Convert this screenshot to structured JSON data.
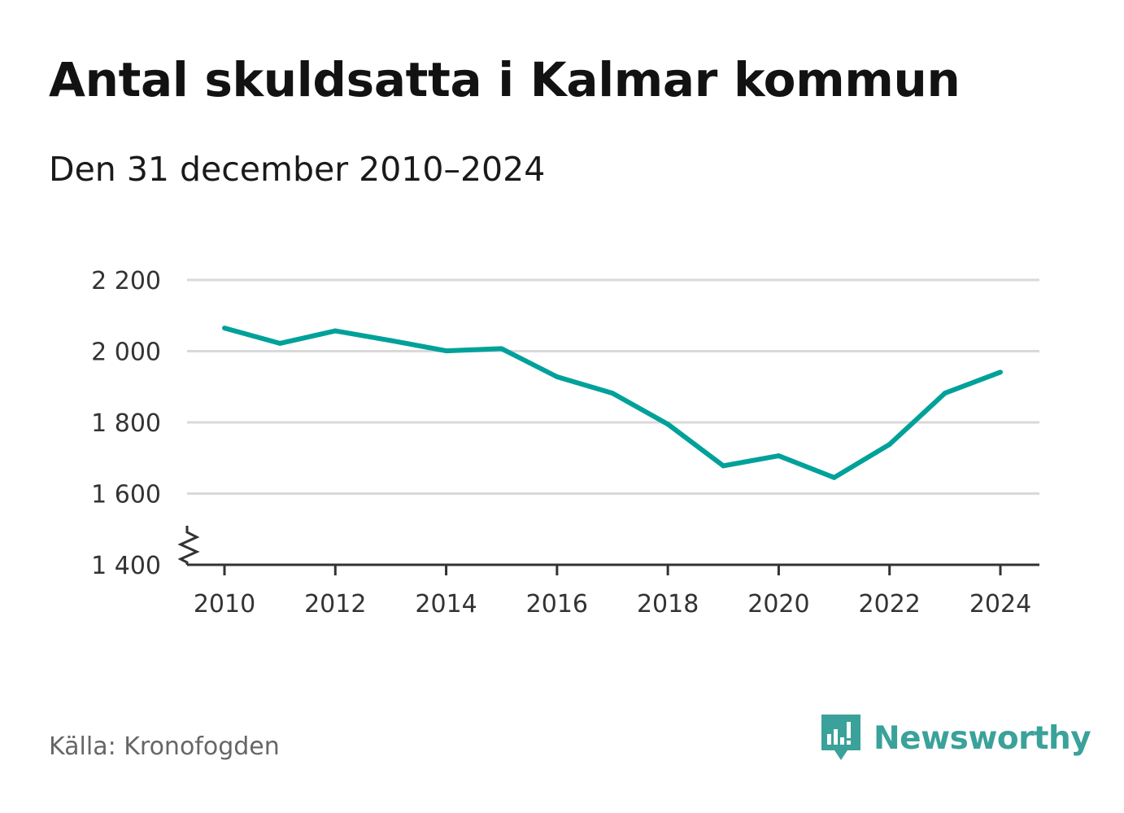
{
  "title": "Antal skuldsatta i Kalmar kommun",
  "subtitle": "Den 31 december 2010–2024",
  "source": "Källa: Kronofogden",
  "brand": "Newsworthy",
  "colors": {
    "line": "#00a19a",
    "grid": "#d9d9d9",
    "axis": "#333333",
    "brand": "#3aa29a"
  },
  "chart_data": {
    "type": "line",
    "title": "Antal skuldsatta i Kalmar kommun",
    "subtitle": "Den 31 december 2010–2024",
    "xlabel": "",
    "ylabel": "",
    "x": [
      2010,
      2011,
      2012,
      2013,
      2014,
      2015,
      2016,
      2017,
      2018,
      2019,
      2020,
      2021,
      2022,
      2023,
      2024
    ],
    "series": [
      {
        "values": [
          2065,
          2022,
          2057,
          2030,
          2001,
          2007,
          1928,
          1882,
          1795,
          1678,
          1706,
          1645,
          1738,
          1882,
          1941
        ]
      }
    ],
    "xlim": [
      2010,
      2024
    ],
    "ylim": [
      1400,
      2200
    ],
    "yticks": [
      1400,
      1600,
      1800,
      2000,
      2200
    ],
    "ytick_labels": [
      "1 400",
      "1 600",
      "1 800",
      "2 000",
      "2 200"
    ],
    "xticks": [
      2010,
      2012,
      2014,
      2016,
      2018,
      2020,
      2022,
      2024
    ],
    "xtick_labels": [
      "2010",
      "2012",
      "2014",
      "2016",
      "2018",
      "2020",
      "2022",
      "2024"
    ],
    "axis_break": true,
    "grid": true,
    "legend": "none"
  }
}
